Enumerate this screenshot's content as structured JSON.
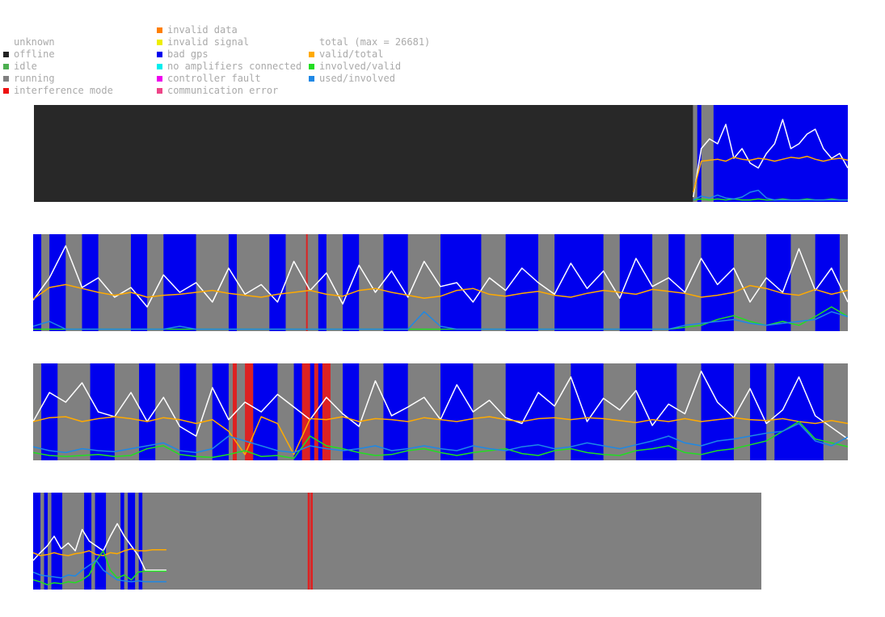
{
  "legend": {
    "status": [
      {
        "label": "unknown",
        "color": null
      },
      {
        "label": "offline",
        "color": "#222222"
      },
      {
        "label": "idle",
        "color": "#4caf50"
      },
      {
        "label": "running",
        "color": "#808080"
      },
      {
        "label": "interference mode",
        "color": "#ee1111"
      }
    ],
    "errors": [
      {
        "label": "invalid data",
        "color": "#ff7f00"
      },
      {
        "label": "invalid signal",
        "color": "#eeee00"
      },
      {
        "label": "bad gps",
        "color": "#0000ee"
      },
      {
        "label": "no amplifiers connected",
        "color": "#00eeee"
      },
      {
        "label": "controller fault",
        "color": "#ee00ee"
      },
      {
        "label": "communication error",
        "color": "#ee4488"
      }
    ],
    "lines": [
      {
        "label": "total (max = 26681)",
        "color": null
      },
      {
        "label": "valid/total",
        "color": "#ffaa00"
      },
      {
        "label": "involved/valid",
        "color": "#22dd22"
      },
      {
        "label": "used/involved",
        "color": "#1e88e5"
      }
    ]
  },
  "colors": {
    "offline": "#282828",
    "running": "#808080",
    "bad_gps": "#0000ee",
    "interference": "#dd2222",
    "total": "#ffffff",
    "valid_total": "#ffaa00",
    "involved_valid": "#22dd22",
    "used_involved": "#1e88e5"
  },
  "chart_data": [
    {
      "type": "line",
      "x_range": [
        0,
        1
      ],
      "y_range": [
        0,
        1
      ],
      "status_segments": [
        {
          "status": "offline",
          "start": 0.0,
          "end": 0.81
        },
        {
          "status": "running",
          "start": 0.81,
          "end": 1.0
        }
      ],
      "bad_gps_ranges": [
        [
          0.815,
          0.82
        ],
        [
          0.835,
          1.0
        ]
      ],
      "interference_ranges": [],
      "series": [
        {
          "name": "total (max = 26681)",
          "key": "total",
          "start": 0.81,
          "end": 1.0,
          "values": [
            0.05,
            0.55,
            0.65,
            0.6,
            0.8,
            0.45,
            0.55,
            0.4,
            0.35,
            0.5,
            0.6,
            0.85,
            0.55,
            0.6,
            0.7,
            0.75,
            0.55,
            0.45,
            0.5,
            0.35
          ]
        },
        {
          "name": "valid/total",
          "key": "valid_total",
          "start": 0.81,
          "end": 1.0,
          "values": [
            0.1,
            0.42,
            0.43,
            0.44,
            0.42,
            0.46,
            0.44,
            0.43,
            0.45,
            0.44,
            0.42,
            0.44,
            0.46,
            0.45,
            0.47,
            0.44,
            0.42,
            0.44,
            0.45,
            0.43
          ]
        },
        {
          "name": "involved/valid",
          "key": "involved_valid",
          "start": 0.81,
          "end": 1.0,
          "values": [
            0.02,
            0.03,
            0.02,
            0.03,
            0.02,
            0.03,
            0.02,
            0.02,
            0.03,
            0.02,
            0.02,
            0.03,
            0.02,
            0.02,
            0.03,
            0.02,
            0.02,
            0.03,
            0.02,
            0.02
          ]
        },
        {
          "name": "used/involved",
          "key": "used_involved",
          "start": 0.81,
          "end": 1.0,
          "values": [
            0.02,
            0.06,
            0.04,
            0.07,
            0.04,
            0.03,
            0.05,
            0.1,
            0.12,
            0.04,
            0.02,
            0.02,
            0.02,
            0.02,
            0.02,
            0.02,
            0.02,
            0.02,
            0.02,
            0.02
          ]
        }
      ]
    },
    {
      "type": "line",
      "x_range": [
        0,
        1
      ],
      "y_range": [
        0,
        1
      ],
      "status_segments": [
        {
          "status": "running",
          "start": 0.0,
          "end": 1.0
        }
      ],
      "bad_gps_ranges": [
        [
          0.0,
          0.01
        ],
        [
          0.02,
          0.04
        ],
        [
          0.06,
          0.08
        ],
        [
          0.12,
          0.14
        ],
        [
          0.16,
          0.2
        ],
        [
          0.24,
          0.25
        ],
        [
          0.29,
          0.31
        ],
        [
          0.35,
          0.36
        ],
        [
          0.38,
          0.4
        ],
        [
          0.43,
          0.46
        ],
        [
          0.5,
          0.55
        ],
        [
          0.58,
          0.62
        ],
        [
          0.64,
          0.7
        ],
        [
          0.72,
          0.76
        ],
        [
          0.78,
          0.8
        ],
        [
          0.82,
          0.86
        ],
        [
          0.9,
          0.93
        ],
        [
          0.96,
          0.99
        ]
      ],
      "interference_ranges": [
        [
          0.335,
          0.337
        ]
      ],
      "series": [
        {
          "name": "total (max = 26681)",
          "key": "total",
          "start": 0.0,
          "end": 1.0,
          "values": [
            0.32,
            0.55,
            0.88,
            0.45,
            0.55,
            0.35,
            0.45,
            0.25,
            0.58,
            0.4,
            0.5,
            0.3,
            0.65,
            0.38,
            0.48,
            0.3,
            0.72,
            0.42,
            0.6,
            0.28,
            0.68,
            0.4,
            0.62,
            0.35,
            0.72,
            0.46,
            0.5,
            0.3,
            0.55,
            0.42,
            0.65,
            0.5,
            0.38,
            0.7,
            0.44,
            0.62,
            0.34,
            0.75,
            0.46,
            0.55,
            0.4,
            0.75,
            0.48,
            0.65,
            0.3,
            0.55,
            0.4,
            0.85,
            0.42,
            0.65,
            0.3
          ]
        },
        {
          "name": "valid/total",
          "key": "valid_total",
          "start": 0.0,
          "end": 1.0,
          "values": [
            0.33,
            0.45,
            0.48,
            0.44,
            0.4,
            0.37,
            0.4,
            0.35,
            0.37,
            0.38,
            0.4,
            0.42,
            0.39,
            0.37,
            0.35,
            0.38,
            0.4,
            0.42,
            0.38,
            0.36,
            0.42,
            0.44,
            0.4,
            0.37,
            0.34,
            0.36,
            0.42,
            0.44,
            0.38,
            0.36,
            0.39,
            0.41,
            0.37,
            0.35,
            0.39,
            0.42,
            0.4,
            0.38,
            0.43,
            0.41,
            0.39,
            0.35,
            0.37,
            0.4,
            0.47,
            0.44,
            0.39,
            0.37,
            0.43,
            0.38,
            0.42
          ]
        },
        {
          "name": "involved/valid",
          "key": "involved_valid",
          "start": 0.0,
          "end": 1.0,
          "values": [
            0.02,
            0.02,
            0.02,
            0.02,
            0.02,
            0.02,
            0.02,
            0.02,
            0.02,
            0.02,
            0.02,
            0.02,
            0.02,
            0.02,
            0.02,
            0.02,
            0.02,
            0.02,
            0.02,
            0.02,
            0.02,
            0.02,
            0.02,
            0.02,
            0.02,
            0.02,
            0.02,
            0.02,
            0.02,
            0.02,
            0.02,
            0.02,
            0.02,
            0.02,
            0.02,
            0.02,
            0.02,
            0.02,
            0.02,
            0.02,
            0.04,
            0.06,
            0.12,
            0.16,
            0.1,
            0.06,
            0.1,
            0.06,
            0.15,
            0.25,
            0.15
          ]
        },
        {
          "name": "used/involved",
          "key": "used_involved",
          "start": 0.0,
          "end": 1.0,
          "values": [
            0.05,
            0.1,
            0.02,
            0.02,
            0.02,
            0.02,
            0.02,
            0.02,
            0.02,
            0.05,
            0.02,
            0.02,
            0.02,
            0.02,
            0.02,
            0.02,
            0.02,
            0.02,
            0.02,
            0.02,
            0.02,
            0.02,
            0.02,
            0.02,
            0.2,
            0.05,
            0.02,
            0.02,
            0.02,
            0.02,
            0.02,
            0.02,
            0.02,
            0.02,
            0.02,
            0.02,
            0.02,
            0.02,
            0.02,
            0.02,
            0.06,
            0.08,
            0.1,
            0.12,
            0.08,
            0.06,
            0.08,
            0.1,
            0.12,
            0.2,
            0.15
          ]
        }
      ]
    },
    {
      "type": "line",
      "x_range": [
        0,
        1
      ],
      "y_range": [
        0,
        1
      ],
      "status_segments": [
        {
          "status": "running",
          "start": 0.0,
          "end": 1.0
        }
      ],
      "bad_gps_ranges": [
        [
          0.01,
          0.03
        ],
        [
          0.07,
          0.1
        ],
        [
          0.13,
          0.15
        ],
        [
          0.18,
          0.2
        ],
        [
          0.22,
          0.24
        ],
        [
          0.27,
          0.3
        ],
        [
          0.32,
          0.36
        ],
        [
          0.38,
          0.4
        ],
        [
          0.43,
          0.46
        ],
        [
          0.5,
          0.54
        ],
        [
          0.58,
          0.64
        ],
        [
          0.66,
          0.7
        ],
        [
          0.74,
          0.79
        ],
        [
          0.82,
          0.86
        ],
        [
          0.88,
          0.9
        ],
        [
          0.91,
          0.97
        ]
      ],
      "interference_ranges": [
        [
          0.245,
          0.25
        ],
        [
          0.26,
          0.27
        ],
        [
          0.33,
          0.34
        ],
        [
          0.345,
          0.35
        ],
        [
          0.355,
          0.365
        ]
      ],
      "series": [
        {
          "name": "total (max = 26681)",
          "key": "total",
          "start": 0.0,
          "end": 1.0,
          "values": [
            0.4,
            0.7,
            0.6,
            0.8,
            0.5,
            0.45,
            0.7,
            0.4,
            0.65,
            0.35,
            0.25,
            0.75,
            0.42,
            0.6,
            0.5,
            0.68,
            0.55,
            0.42,
            0.65,
            0.48,
            0.35,
            0.82,
            0.46,
            0.55,
            0.65,
            0.42,
            0.78,
            0.5,
            0.62,
            0.44,
            0.38,
            0.7,
            0.56,
            0.86,
            0.4,
            0.64,
            0.52,
            0.72,
            0.36,
            0.58,
            0.48,
            0.92,
            0.6,
            0.44,
            0.74,
            0.38,
            0.52,
            0.86,
            0.46,
            0.34,
            0.22
          ]
        },
        {
          "name": "valid/total",
          "key": "valid_total",
          "start": 0.0,
          "end": 1.0,
          "values": [
            0.4,
            0.44,
            0.45,
            0.4,
            0.43,
            0.45,
            0.43,
            0.4,
            0.44,
            0.42,
            0.38,
            0.42,
            0.3,
            0.06,
            0.45,
            0.38,
            0.06,
            0.43,
            0.42,
            0.45,
            0.4,
            0.43,
            0.42,
            0.4,
            0.44,
            0.42,
            0.4,
            0.43,
            0.45,
            0.42,
            0.4,
            0.43,
            0.44,
            0.42,
            0.44,
            0.43,
            0.41,
            0.39,
            0.42,
            0.4,
            0.43,
            0.4,
            0.42,
            0.44,
            0.42,
            0.41,
            0.43,
            0.4,
            0.38,
            0.41,
            0.38
          ]
        },
        {
          "name": "involved/valid",
          "key": "involved_valid",
          "start": 0.0,
          "end": 1.0,
          "values": [
            0.08,
            0.05,
            0.04,
            0.05,
            0.06,
            0.04,
            0.05,
            0.12,
            0.15,
            0.06,
            0.04,
            0.03,
            0.06,
            0.1,
            0.04,
            0.05,
            0.02,
            0.25,
            0.15,
            0.12,
            0.08,
            0.05,
            0.06,
            0.1,
            0.12,
            0.08,
            0.05,
            0.08,
            0.1,
            0.12,
            0.07,
            0.05,
            0.1,
            0.12,
            0.08,
            0.06,
            0.05,
            0.1,
            0.12,
            0.15,
            0.08,
            0.06,
            0.1,
            0.12,
            0.16,
            0.2,
            0.3,
            0.4,
            0.22,
            0.18,
            0.14
          ]
        },
        {
          "name": "used/involved",
          "key": "used_involved",
          "start": 0.0,
          "end": 1.0,
          "values": [
            0.14,
            0.1,
            0.08,
            0.12,
            0.1,
            0.09,
            0.12,
            0.15,
            0.18,
            0.1,
            0.08,
            0.12,
            0.25,
            0.2,
            0.15,
            0.1,
            0.08,
            0.15,
            0.12,
            0.1,
            0.12,
            0.15,
            0.1,
            0.12,
            0.15,
            0.12,
            0.1,
            0.15,
            0.12,
            0.1,
            0.14,
            0.16,
            0.12,
            0.14,
            0.18,
            0.15,
            0.12,
            0.16,
            0.2,
            0.25,
            0.18,
            0.15,
            0.2,
            0.22,
            0.25,
            0.28,
            0.3,
            0.38,
            0.2,
            0.15,
            0.24
          ]
        }
      ]
    },
    {
      "type": "line",
      "x_range": [
        0,
        1
      ],
      "y_range": [
        0,
        1
      ],
      "status_segments": [
        {
          "status": "running",
          "start": 0.0,
          "end": 1.0
        }
      ],
      "bad_gps_ranges": [
        [
          0.0,
          0.01
        ],
        [
          0.015,
          0.02
        ],
        [
          0.025,
          0.04
        ],
        [
          0.07,
          0.08
        ],
        [
          0.085,
          0.1
        ],
        [
          0.12,
          0.125
        ],
        [
          0.13,
          0.14
        ],
        [
          0.145,
          0.15
        ]
      ],
      "interference_ranges": [
        [
          0.377,
          0.38
        ],
        [
          0.381,
          0.384
        ]
      ],
      "series": [
        {
          "name": "total (max = 26681)",
          "key": "total",
          "start": 0.0,
          "end": 0.183,
          "values": [
            0.3,
            0.38,
            0.45,
            0.55,
            0.42,
            0.48,
            0.4,
            0.62,
            0.5,
            0.45,
            0.4,
            0.55,
            0.68,
            0.55,
            0.45,
            0.35,
            0.2,
            0.2,
            0.2,
            0.2
          ]
        },
        {
          "name": "valid/total",
          "key": "valid_total",
          "start": 0.0,
          "end": 0.183,
          "values": [
            0.38,
            0.35,
            0.36,
            0.38,
            0.36,
            0.35,
            0.37,
            0.38,
            0.4,
            0.36,
            0.35,
            0.38,
            0.37,
            0.4,
            0.42,
            0.4,
            0.4,
            0.41,
            0.41,
            0.41
          ]
        },
        {
          "name": "involved/valid",
          "key": "involved_valid",
          "start": 0.0,
          "end": 0.183,
          "values": [
            0.1,
            0.08,
            0.05,
            0.07,
            0.06,
            0.08,
            0.07,
            0.1,
            0.15,
            0.3,
            0.4,
            0.2,
            0.12,
            0.15,
            0.1,
            0.18,
            0.19,
            0.19,
            0.19,
            0.19
          ]
        },
        {
          "name": "used/involved",
          "key": "used_involved",
          "start": 0.0,
          "end": 0.183,
          "values": [
            0.18,
            0.15,
            0.14,
            0.13,
            0.12,
            0.15,
            0.14,
            0.2,
            0.25,
            0.3,
            0.2,
            0.15,
            0.1,
            0.09,
            0.08,
            0.09,
            0.08,
            0.08,
            0.08,
            0.08
          ]
        }
      ]
    }
  ]
}
